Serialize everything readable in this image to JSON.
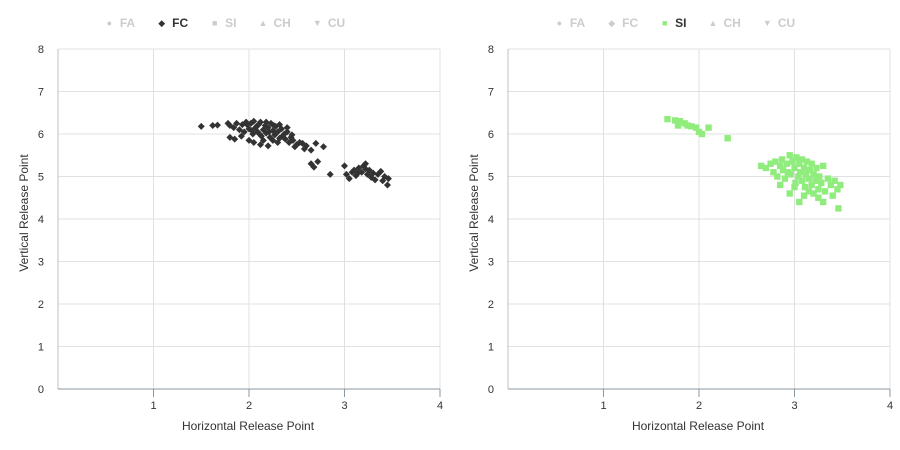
{
  "legend": {
    "items": [
      {
        "label": "FA",
        "icon": "circle-icon",
        "color": "#cccccc"
      },
      {
        "label": "FC",
        "icon": "diamond-icon",
        "color": "#333333"
      },
      {
        "label": "SI",
        "icon": "square-icon",
        "color": "#90ed7d"
      },
      {
        "label": "CH",
        "icon": "triangle-up-icon",
        "color": "#cccccc"
      },
      {
        "label": "CU",
        "icon": "triangle-down-icon",
        "color": "#cccccc"
      }
    ]
  },
  "chart_data": [
    {
      "type": "scatter",
      "title": "",
      "xlabel": "Horizontal Release Point",
      "ylabel": "Vertical Release Point",
      "xlim": [
        0,
        4
      ],
      "ylim": [
        0,
        8
      ],
      "xticks": [
        "1",
        "2",
        "3",
        "4"
      ],
      "yticks": [
        "0",
        "1",
        "2",
        "3",
        "4",
        "5",
        "6",
        "7",
        "8"
      ],
      "grid": true,
      "legend_position": "top-center",
      "active_series": "FC",
      "series": [
        {
          "name": "FC",
          "marker": "diamond",
          "color": "#333333",
          "points": [
            [
              1.5,
              6.18
            ],
            [
              1.62,
              6.2
            ],
            [
              1.67,
              6.21
            ],
            [
              1.78,
              6.25
            ],
            [
              1.8,
              6.2
            ],
            [
              1.84,
              6.15
            ],
            [
              1.87,
              6.25
            ],
            [
              1.9,
              6.1
            ],
            [
              1.93,
              6.22
            ],
            [
              1.95,
              6.05
            ],
            [
              1.97,
              6.28
            ],
            [
              2.0,
              6.12
            ],
            [
              2.02,
              6.25
            ],
            [
              2.04,
              6.0
            ],
            [
              2.05,
              6.3
            ],
            [
              2.07,
              6.15
            ],
            [
              2.09,
              6.05
            ],
            [
              2.1,
              6.22
            ],
            [
              2.12,
              6.28
            ],
            [
              2.13,
              5.95
            ],
            [
              2.15,
              6.1
            ],
            [
              2.17,
              6.2
            ],
            [
              2.18,
              6.02
            ],
            [
              2.2,
              6.15
            ],
            [
              2.22,
              5.92
            ],
            [
              2.23,
              6.25
            ],
            [
              2.25,
              6.08
            ],
            [
              2.27,
              5.98
            ],
            [
              2.28,
              6.18
            ],
            [
              2.3,
              6.05
            ],
            [
              2.32,
              5.9
            ],
            [
              2.34,
              6.12
            ],
            [
              2.35,
              5.95
            ],
            [
              2.37,
              6.0
            ],
            [
              2.38,
              5.88
            ],
            [
              2.4,
              6.05
            ],
            [
              2.42,
              5.8
            ],
            [
              2.44,
              5.92
            ],
            [
              2.46,
              5.85
            ],
            [
              2.48,
              5.7
            ],
            [
              2.5,
              5.75
            ],
            [
              2.53,
              5.8
            ],
            [
              2.56,
              5.78
            ],
            [
              2.58,
              5.65
            ],
            [
              2.6,
              5.72
            ],
            [
              2.65,
              5.62
            ],
            [
              2.7,
              5.78
            ],
            [
              2.78,
              5.7
            ],
            [
              2.65,
              5.3
            ],
            [
              2.68,
              5.22
            ],
            [
              2.72,
              5.35
            ],
            [
              2.85,
              5.05
            ],
            [
              1.8,
              5.92
            ],
            [
              1.85,
              5.88
            ],
            [
              1.92,
              5.95
            ],
            [
              2.0,
              5.85
            ],
            [
              2.05,
              5.8
            ],
            [
              2.12,
              5.75
            ],
            [
              2.2,
              5.72
            ],
            [
              2.25,
              5.85
            ],
            [
              2.3,
              5.8
            ],
            [
              2.15,
              5.85
            ],
            [
              2.08,
              6.18
            ],
            [
              2.18,
              6.28
            ],
            [
              2.26,
              6.2
            ],
            [
              2.32,
              6.22
            ],
            [
              2.4,
              6.15
            ],
            [
              2.45,
              5.98
            ],
            [
              1.98,
              6.22
            ],
            [
              2.03,
              6.08
            ],
            [
              2.11,
              6.0
            ],
            [
              2.21,
              6.05
            ],
            [
              3.0,
              5.25
            ],
            [
              3.02,
              5.05
            ],
            [
              3.05,
              4.95
            ],
            [
              3.08,
              5.1
            ],
            [
              3.1,
              5.15
            ],
            [
              3.12,
              5.02
            ],
            [
              3.15,
              5.2
            ],
            [
              3.18,
              5.1
            ],
            [
              3.2,
              5.25
            ],
            [
              3.22,
              5.3
            ],
            [
              3.24,
              5.05
            ],
            [
              3.26,
              5.15
            ],
            [
              3.28,
              4.98
            ],
            [
              3.3,
              5.08
            ],
            [
              3.32,
              4.92
            ],
            [
              3.35,
              5.05
            ],
            [
              3.38,
              5.12
            ],
            [
              3.4,
              4.9
            ],
            [
              3.42,
              5.0
            ],
            [
              3.45,
              4.8
            ],
            [
              3.46,
              4.95
            ],
            [
              3.22,
              5.18
            ],
            [
              3.14,
              5.08
            ]
          ]
        }
      ]
    },
    {
      "type": "scatter",
      "title": "",
      "xlabel": "Horizontal Release Point",
      "ylabel": "Vertical Release Point",
      "xlim": [
        0,
        4
      ],
      "ylim": [
        0,
        8
      ],
      "xticks": [
        "1",
        "2",
        "3",
        "4"
      ],
      "yticks": [
        "0",
        "1",
        "2",
        "3",
        "4",
        "5",
        "6",
        "7",
        "8"
      ],
      "grid": true,
      "legend_position": "top-center",
      "active_series": "SI",
      "series": [
        {
          "name": "SI",
          "marker": "square",
          "color": "#90ed7d",
          "points": [
            [
              1.67,
              6.35
            ],
            [
              1.75,
              6.32
            ],
            [
              1.8,
              6.3
            ],
            [
              1.85,
              6.25
            ],
            [
              1.88,
              6.2
            ],
            [
              1.92,
              6.18
            ],
            [
              1.97,
              6.15
            ],
            [
              2.0,
              6.05
            ],
            [
              2.03,
              6.0
            ],
            [
              2.1,
              6.15
            ],
            [
              2.3,
              5.9
            ],
            [
              1.78,
              6.2
            ],
            [
              2.65,
              5.25
            ],
            [
              2.7,
              5.2
            ],
            [
              2.75,
              5.3
            ],
            [
              2.78,
              5.1
            ],
            [
              2.8,
              5.35
            ],
            [
              2.82,
              5.0
            ],
            [
              2.85,
              5.25
            ],
            [
              2.87,
              5.4
            ],
            [
              2.88,
              5.15
            ],
            [
              2.9,
              4.95
            ],
            [
              2.92,
              5.3
            ],
            [
              2.93,
              5.1
            ],
            [
              2.95,
              5.5
            ],
            [
              2.96,
              5.05
            ],
            [
              2.98,
              5.35
            ],
            [
              3.0,
              5.2
            ],
            [
              3.01,
              4.85
            ],
            [
              3.02,
              5.45
            ],
            [
              3.04,
              5.0
            ],
            [
              3.05,
              5.3
            ],
            [
              3.06,
              5.1
            ],
            [
              3.08,
              4.9
            ],
            [
              3.08,
              5.4
            ],
            [
              3.1,
              5.2
            ],
            [
              3.11,
              4.75
            ],
            [
              3.12,
              5.05
            ],
            [
              3.13,
              5.35
            ],
            [
              3.15,
              4.95
            ],
            [
              3.16,
              5.15
            ],
            [
              3.18,
              5.3
            ],
            [
              3.18,
              4.8
            ],
            [
              3.2,
              5.05
            ],
            [
              3.22,
              4.9
            ],
            [
              3.23,
              5.2
            ],
            [
              3.25,
              4.7
            ],
            [
              3.26,
              5.0
            ],
            [
              3.28,
              4.85
            ],
            [
              3.3,
              5.25
            ],
            [
              3.32,
              4.65
            ],
            [
              3.35,
              4.95
            ],
            [
              3.38,
              4.8
            ],
            [
              3.4,
              4.55
            ],
            [
              3.42,
              4.9
            ],
            [
              3.45,
              4.7
            ],
            [
              3.46,
              4.25
            ],
            [
              3.48,
              4.8
            ],
            [
              3.3,
              4.4
            ],
            [
              3.05,
              4.4
            ],
            [
              2.95,
              4.6
            ],
            [
              3.0,
              4.75
            ],
            [
              3.15,
              4.65
            ],
            [
              2.85,
              4.8
            ],
            [
              3.2,
              4.6
            ],
            [
              3.25,
              4.5
            ],
            [
              3.1,
              4.55
            ]
          ]
        }
      ]
    }
  ]
}
